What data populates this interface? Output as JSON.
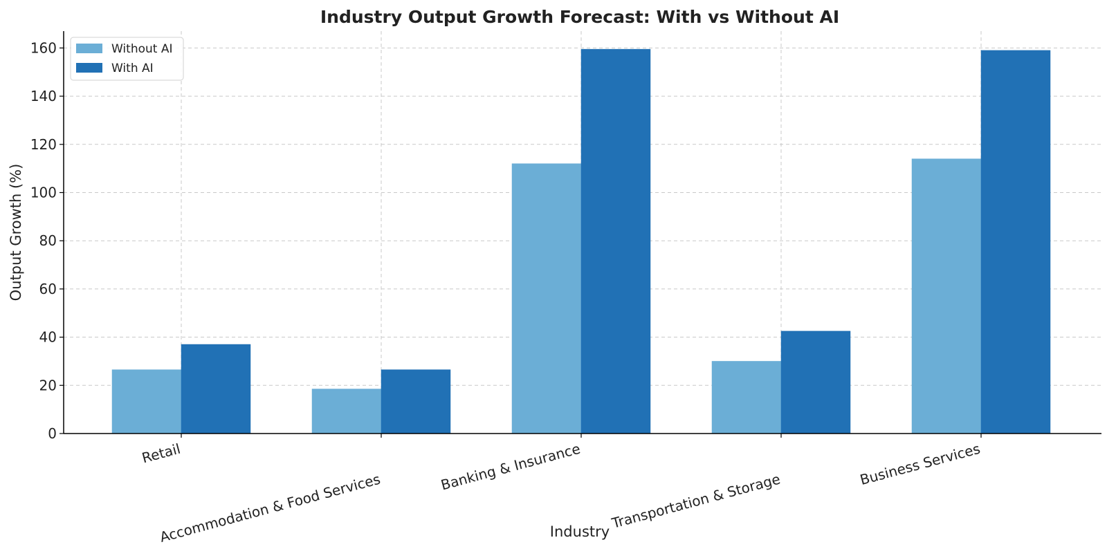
{
  "chart_data": {
    "type": "bar",
    "title": "Industry Output Growth Forecast: With vs Without AI",
    "xlabel": "Industry",
    "ylabel": "Output Growth (%)",
    "categories": [
      "Retail",
      "Accommodation & Food Services",
      "Banking & Insurance",
      "Transportation & Storage",
      "Business Services"
    ],
    "series": [
      {
        "name": "Without AI",
        "color": "#6baed6",
        "values": [
          26.5,
          18.5,
          112,
          30,
          114
        ]
      },
      {
        "name": "With AI",
        "color": "#2171b5",
        "values": [
          37,
          26.5,
          159.5,
          42.5,
          159
        ]
      }
    ],
    "ylim": [
      0,
      167
    ],
    "yticks": [
      0,
      20,
      40,
      60,
      80,
      100,
      120,
      140,
      160
    ],
    "grid": true,
    "legend_position": "top-left"
  }
}
